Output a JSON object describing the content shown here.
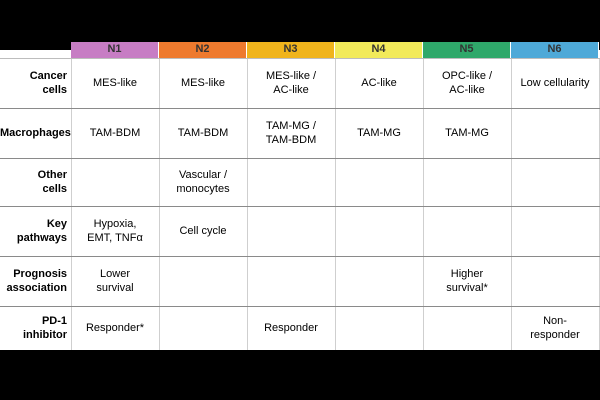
{
  "columns": [
    {
      "label": "N1",
      "color": "#c77dc4"
    },
    {
      "label": "N2",
      "color": "#ee7a2e"
    },
    {
      "label": "N3",
      "color": "#f0b41c"
    },
    {
      "label": "N4",
      "color": "#f2ea5a"
    },
    {
      "label": "N5",
      "color": "#2fa86a"
    },
    {
      "label": "N6",
      "color": "#4ea9d8"
    }
  ],
  "rows": [
    {
      "label_lines": [
        "Cancer",
        "cells"
      ],
      "cells": [
        [
          "MES-like"
        ],
        [
          "MES-like"
        ],
        [
          "MES-like /",
          "AC-like"
        ],
        [
          "AC-like"
        ],
        [
          "OPC-like /",
          "AC-like"
        ],
        [
          "Low cellularity"
        ]
      ]
    },
    {
      "label_lines": [
        "Macrophages"
      ],
      "cells": [
        [
          "TAM-BDM"
        ],
        [
          "TAM-BDM"
        ],
        [
          "TAM-MG /",
          "TAM-BDM"
        ],
        [
          "TAM-MG"
        ],
        [
          "TAM-MG"
        ],
        []
      ]
    },
    {
      "label_lines": [
        "Other",
        "cells"
      ],
      "cells": [
        [],
        [
          "Vascular /",
          "monocytes"
        ],
        [],
        [],
        [],
        []
      ]
    },
    {
      "label_lines": [
        "Key",
        "pathways"
      ],
      "cells": [
        [
          "Hypoxia,",
          "EMT, TNFα"
        ],
        [
          "Cell cycle"
        ],
        [],
        [],
        [],
        []
      ]
    },
    {
      "label_lines": [
        "Prognosis",
        "association"
      ],
      "cells": [
        [
          "Lower",
          "survival"
        ],
        [],
        [],
        [],
        [
          "Higher",
          "survival*"
        ],
        []
      ]
    },
    {
      "label_lines": [
        "PD-1",
        "inhibitor"
      ],
      "cells": [
        [
          "Responder*"
        ],
        [],
        [
          "Responder"
        ],
        [],
        [],
        [
          "Non-",
          "responder"
        ]
      ]
    }
  ]
}
